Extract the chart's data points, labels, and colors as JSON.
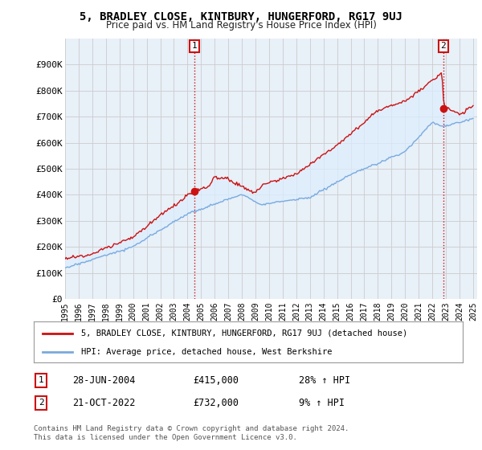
{
  "title": "5, BRADLEY CLOSE, KINTBURY, HUNGERFORD, RG17 9UJ",
  "subtitle": "Price paid vs. HM Land Registry's House Price Index (HPI)",
  "ylim": [
    0,
    1000000
  ],
  "yticks": [
    0,
    100000,
    200000,
    300000,
    400000,
    500000,
    600000,
    700000,
    800000,
    900000
  ],
  "ytick_labels": [
    "£0",
    "£100K",
    "£200K",
    "£300K",
    "£400K",
    "£500K",
    "£600K",
    "£700K",
    "£800K",
    "£900K"
  ],
  "hpi_color": "#7aaadd",
  "price_color": "#cc1111",
  "fill_color": "#ddeeff",
  "sale1_year": 2004.49,
  "sale1_price": 415000,
  "sale2_year": 2022.8,
  "sale2_price": 732000,
  "legend_label_price": "5, BRADLEY CLOSE, KINTBURY, HUNGERFORD, RG17 9UJ (detached house)",
  "legend_label_hpi": "HPI: Average price, detached house, West Berkshire",
  "annotation1_date": "28-JUN-2004",
  "annotation1_price": "£415,000",
  "annotation1_hpi": "28% ↑ HPI",
  "annotation2_date": "21-OCT-2022",
  "annotation2_price": "£732,000",
  "annotation2_hpi": "9% ↑ HPI",
  "footer": "Contains HM Land Registry data © Crown copyright and database right 2024.\nThis data is licensed under the Open Government Licence v3.0.",
  "background_color": "#ffffff",
  "grid_color": "#cccccc"
}
